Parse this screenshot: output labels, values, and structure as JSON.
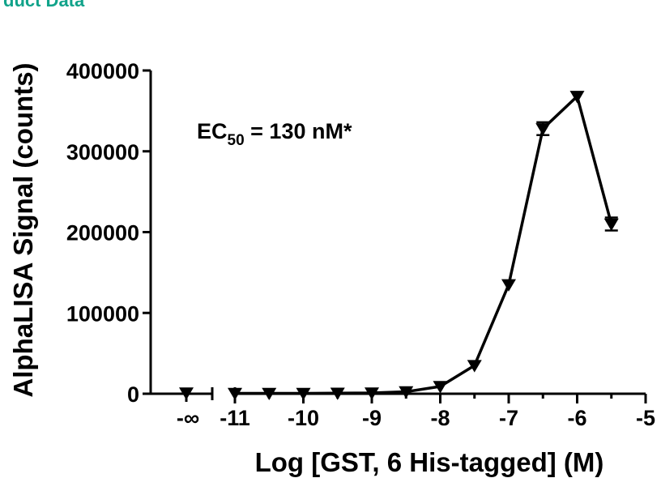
{
  "header_text": "duct Data",
  "chart_data": {
    "type": "line",
    "xlabel": "Log [GST, 6 His-tagged] (M)",
    "ylabel": "AlphaLISA Signal (counts)",
    "ylim": [
      0,
      400000
    ],
    "xlim": [
      -11,
      -5
    ],
    "yticks": [
      "0",
      "100000",
      "200000",
      "300000",
      "400000"
    ],
    "xticks": [
      "-11",
      "-10",
      "-9",
      "-8",
      "-7",
      "-6",
      "-5"
    ],
    "zero_tick_label": "-∞",
    "annotation": {
      "main": "EC",
      "sub": "50",
      "rest": " = 130 nM*"
    },
    "zero_point": {
      "x": "-∞",
      "y": 1000
    },
    "marker": "triangle-down",
    "grid": false,
    "series": [
      {
        "x": [
          -11,
          -10.5,
          -10,
          -9.5,
          -9,
          -8.5,
          -8,
          -7.5,
          -7,
          -6.5,
          -6,
          -5.5
        ],
        "y": [
          500,
          500,
          500,
          800,
          1000,
          2500,
          9000,
          35000,
          135000,
          328000,
          368000,
          210000
        ],
        "err": [
          0,
          0,
          0,
          0,
          0,
          0,
          0,
          0,
          0,
          8000,
          0,
          8000
        ]
      }
    ]
  }
}
